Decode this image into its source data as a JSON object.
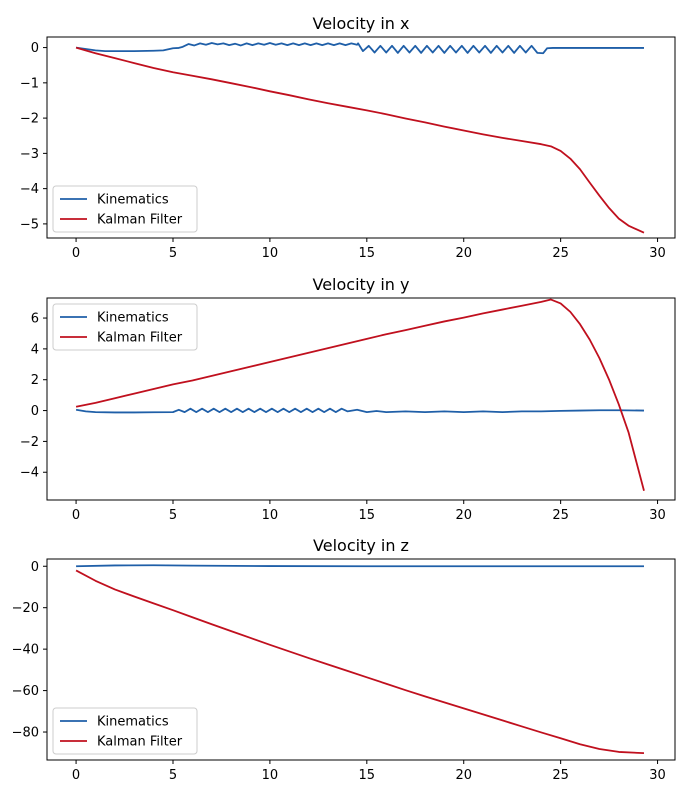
{
  "chart_data": [
    {
      "type": "line",
      "title": "Velocity in x",
      "xlabel": "",
      "ylabel": "",
      "xlim": [
        -1.5,
        30.9
      ],
      "ylim": [
        -5.4,
        0.3
      ],
      "xticks": [
        0,
        5,
        10,
        15,
        20,
        25,
        30
      ],
      "yticks": [
        0,
        -1,
        -2,
        -3,
        -4,
        -5
      ],
      "legend": "lower-left",
      "grid": false,
      "series": [
        {
          "name": "Kinematics",
          "color": "#1f5fa8",
          "x": [
            0,
            0.5,
            1,
            1.5,
            2,
            3,
            4,
            4.5,
            5,
            5.3,
            5.5,
            5.8,
            6.1,
            6.4,
            6.7,
            7.0,
            7.3,
            7.6,
            7.9,
            8.2,
            8.5,
            8.8,
            9.1,
            9.4,
            9.7,
            10.0,
            10.3,
            10.6,
            10.9,
            11.2,
            11.5,
            11.8,
            12.1,
            12.4,
            12.7,
            13.0,
            13.3,
            13.6,
            13.9,
            14.2,
            14.5,
            14.55,
            14.8,
            15.1,
            15.4,
            15.7,
            16.0,
            16.3,
            16.6,
            16.9,
            17.2,
            17.5,
            17.8,
            18.1,
            18.4,
            18.7,
            19.0,
            19.3,
            19.6,
            19.9,
            20.2,
            20.5,
            20.8,
            21.1,
            21.4,
            21.7,
            22.0,
            22.3,
            22.6,
            22.9,
            23.2,
            23.5,
            23.8,
            24.1,
            24.3,
            24.6,
            25,
            26,
            27,
            28,
            29.3
          ],
          "y": [
            0.0,
            -0.04,
            -0.08,
            -0.1,
            -0.1,
            -0.1,
            -0.09,
            -0.08,
            -0.02,
            -0.01,
            0.02,
            0.1,
            0.06,
            0.12,
            0.08,
            0.13,
            0.09,
            0.12,
            0.07,
            0.11,
            0.06,
            0.12,
            0.07,
            0.12,
            0.08,
            0.13,
            0.08,
            0.12,
            0.07,
            0.12,
            0.07,
            0.12,
            0.07,
            0.12,
            0.07,
            0.12,
            0.07,
            0.12,
            0.07,
            0.12,
            0.08,
            0.12,
            -0.1,
            0.05,
            -0.14,
            0.05,
            -0.14,
            0.05,
            -0.15,
            0.05,
            -0.14,
            0.05,
            -0.15,
            0.05,
            -0.14,
            0.05,
            -0.15,
            0.05,
            -0.14,
            0.05,
            -0.15,
            0.05,
            -0.14,
            0.05,
            -0.15,
            0.05,
            -0.14,
            0.05,
            -0.15,
            0.05,
            -0.14,
            0.05,
            -0.15,
            -0.16,
            -0.02,
            -0.01,
            -0.01,
            -0.01,
            -0.01,
            -0.01,
            -0.01
          ]
        },
        {
          "name": "Kalman Filter",
          "color": "#c0101e",
          "x": [
            0,
            1,
            2,
            3,
            4,
            5,
            6,
            7,
            8,
            9,
            10,
            11,
            12,
            13,
            14,
            15,
            16,
            17,
            18,
            19,
            20,
            21,
            22,
            23,
            24,
            24.5,
            25,
            25.5,
            26,
            26.5,
            27,
            27.5,
            28,
            28.5,
            29.3
          ],
          "y": [
            0.0,
            -0.16,
            -0.3,
            -0.44,
            -0.58,
            -0.7,
            -0.8,
            -0.9,
            -1.01,
            -1.12,
            -1.24,
            -1.35,
            -1.47,
            -1.58,
            -1.68,
            -1.78,
            -1.89,
            -2.01,
            -2.12,
            -2.24,
            -2.35,
            -2.46,
            -2.56,
            -2.65,
            -2.74,
            -2.8,
            -2.93,
            -3.15,
            -3.45,
            -3.83,
            -4.2,
            -4.55,
            -4.85,
            -5.05,
            -5.25
          ]
        }
      ]
    },
    {
      "type": "line",
      "title": "Velocity in y",
      "xlabel": "",
      "ylabel": "",
      "xlim": [
        -1.5,
        30.9
      ],
      "ylim": [
        -5.8,
        7.3
      ],
      "xticks": [
        0,
        5,
        10,
        15,
        20,
        25,
        30
      ],
      "yticks": [
        6,
        4,
        2,
        0,
        -2,
        -4
      ],
      "legend": "upper-left",
      "grid": false,
      "series": [
        {
          "name": "Kinematics",
          "color": "#1f5fa8",
          "x": [
            0,
            0.5,
            1,
            2,
            3,
            4,
            5,
            5.3,
            5.6,
            5.9,
            6.2,
            6.5,
            6.8,
            7.1,
            7.4,
            7.7,
            8.0,
            8.3,
            8.6,
            8.9,
            9.2,
            9.5,
            9.8,
            10.1,
            10.4,
            10.7,
            11.0,
            11.3,
            11.6,
            11.9,
            12.2,
            12.5,
            12.8,
            13.1,
            13.4,
            13.7,
            14.0,
            14.5,
            15,
            15.5,
            16,
            17,
            18,
            19,
            20,
            21,
            22,
            23,
            24,
            25,
            26,
            27,
            28,
            29.3
          ],
          "y": [
            0.05,
            -0.05,
            -0.1,
            -0.12,
            -0.12,
            -0.11,
            -0.1,
            0.05,
            -0.1,
            0.12,
            -0.1,
            0.12,
            -0.1,
            0.12,
            -0.1,
            0.12,
            -0.1,
            0.12,
            -0.1,
            0.12,
            -0.1,
            0.12,
            -0.1,
            0.12,
            -0.1,
            0.12,
            -0.1,
            0.12,
            -0.1,
            0.12,
            -0.1,
            0.12,
            -0.1,
            0.12,
            -0.1,
            0.12,
            -0.05,
            0.05,
            -0.1,
            -0.03,
            -0.1,
            -0.05,
            -0.1,
            -0.05,
            -0.1,
            -0.05,
            -0.1,
            -0.05,
            -0.05,
            -0.02,
            0.0,
            0.02,
            0.02,
            0.0
          ]
        },
        {
          "name": "Kalman Filter",
          "color": "#c0101e",
          "x": [
            0,
            1,
            2,
            3,
            4,
            5,
            6,
            7,
            8,
            9,
            10,
            11,
            12,
            13,
            14,
            15,
            16,
            17,
            18,
            19,
            20,
            21,
            22,
            23,
            24,
            24.5,
            25,
            25.5,
            26,
            26.5,
            27,
            27.5,
            28,
            28.5,
            29.3
          ],
          "y": [
            0.25,
            0.5,
            0.8,
            1.1,
            1.4,
            1.7,
            1.95,
            2.25,
            2.55,
            2.85,
            3.15,
            3.45,
            3.75,
            4.05,
            4.35,
            4.65,
            4.95,
            5.22,
            5.5,
            5.78,
            6.03,
            6.3,
            6.55,
            6.8,
            7.05,
            7.2,
            6.95,
            6.4,
            5.6,
            4.6,
            3.4,
            2.0,
            0.4,
            -1.4,
            -5.2
          ]
        }
      ]
    },
    {
      "type": "line",
      "title": "Velocity in z",
      "xlabel": "",
      "ylabel": "",
      "xlim": [
        -1.5,
        30.9
      ],
      "ylim": [
        -93.5,
        3.5
      ],
      "xticks": [
        0,
        5,
        10,
        15,
        20,
        25,
        30
      ],
      "yticks": [
        0,
        -20,
        -40,
        -60,
        -80
      ],
      "legend": "lower-left",
      "grid": false,
      "series": [
        {
          "name": "Kinematics",
          "color": "#1f5fa8",
          "x": [
            0,
            2,
            4,
            6,
            10,
            15,
            20,
            25,
            29.3
          ],
          "y": [
            0.0,
            0.4,
            0.5,
            0.3,
            0.1,
            0.0,
            0.0,
            0.0,
            0.0
          ]
        },
        {
          "name": "Kalman Filter",
          "color": "#c0101e",
          "x": [
            0,
            1,
            2,
            3,
            4,
            5,
            6,
            7,
            8,
            9,
            10,
            11,
            12,
            13,
            14,
            15,
            16,
            17,
            18,
            19,
            20,
            21,
            22,
            23,
            24,
            25,
            26,
            27,
            28,
            29.3
          ],
          "y": [
            -2.0,
            -7.0,
            -11.2,
            -14.6,
            -17.9,
            -21.2,
            -24.6,
            -28.0,
            -31.3,
            -34.6,
            -37.9,
            -41.1,
            -44.3,
            -47.4,
            -50.5,
            -53.6,
            -56.7,
            -59.8,
            -62.8,
            -65.7,
            -68.6,
            -71.5,
            -74.4,
            -77.3,
            -80.2,
            -83.0,
            -85.9,
            -88.2,
            -89.6,
            -90.2
          ]
        }
      ]
    }
  ]
}
